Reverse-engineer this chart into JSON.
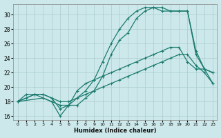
{
  "xlabel": "Humidex (Indice chaleur)",
  "bg_color": "#cce8ea",
  "grid_color": "#aacccc",
  "line_color": "#1a7a6e",
  "xlim": [
    -0.5,
    23.5
  ],
  "ylim": [
    15.5,
    31.5
  ],
  "xticks": [
    0,
    1,
    2,
    3,
    4,
    5,
    6,
    7,
    8,
    9,
    10,
    11,
    12,
    13,
    14,
    15,
    16,
    17,
    18,
    19,
    20,
    21,
    22,
    23
  ],
  "yticks": [
    16,
    18,
    20,
    22,
    24,
    26,
    28,
    30
  ],
  "line1_x": [
    0,
    1,
    2,
    3,
    4,
    5,
    6,
    7,
    8,
    9,
    10,
    11,
    12,
    13,
    14,
    15,
    16,
    17,
    18,
    19,
    20,
    21,
    22,
    23
  ],
  "line1_y": [
    18.0,
    18.5,
    19.0,
    19.0,
    18.5,
    17.0,
    17.5,
    19.5,
    20.5,
    21.0,
    21.5,
    22.0,
    22.5,
    23.0,
    23.5,
    24.0,
    24.5,
    25.0,
    25.5,
    25.5,
    23.5,
    22.5,
    22.5,
    20.5
  ],
  "line2_x": [
    0,
    2,
    3,
    4,
    5,
    6,
    7,
    8,
    9,
    10,
    11,
    12,
    13,
    14,
    15,
    16,
    17,
    18,
    19,
    20,
    21,
    22,
    23
  ],
  "line2_y": [
    18.0,
    19.0,
    19.0,
    18.5,
    18.0,
    18.0,
    18.5,
    19.0,
    19.5,
    20.0,
    20.5,
    21.0,
    21.5,
    22.0,
    22.5,
    23.0,
    23.5,
    24.0,
    24.5,
    24.5,
    23.0,
    22.0,
    20.5
  ],
  "line3_x": [
    0,
    1,
    2,
    3,
    4,
    5,
    6,
    7,
    8,
    9,
    10,
    11,
    12,
    13,
    14,
    15,
    16,
    17,
    18,
    19,
    20,
    21,
    22,
    23
  ],
  "line3_y": [
    18.0,
    19.0,
    19.0,
    18.5,
    18.0,
    16.0,
    17.5,
    18.5,
    19.5,
    21.0,
    23.5,
    26.0,
    28.0,
    29.5,
    30.5,
    31.0,
    31.0,
    31.0,
    30.5,
    30.5,
    30.5,
    25.0,
    22.5,
    22.0
  ],
  "line4_x": [
    0,
    3,
    4,
    5,
    6,
    7,
    8,
    9,
    10,
    11,
    12,
    13,
    14,
    15,
    16,
    17,
    18,
    19,
    20,
    21,
    22,
    23
  ],
  "line4_y": [
    18.0,
    18.5,
    18.0,
    17.5,
    17.5,
    17.5,
    18.5,
    19.5,
    21.5,
    24.5,
    26.5,
    27.5,
    29.5,
    30.5,
    31.0,
    30.5,
    30.5,
    30.5,
    30.5,
    24.5,
    22.5,
    22.0
  ]
}
